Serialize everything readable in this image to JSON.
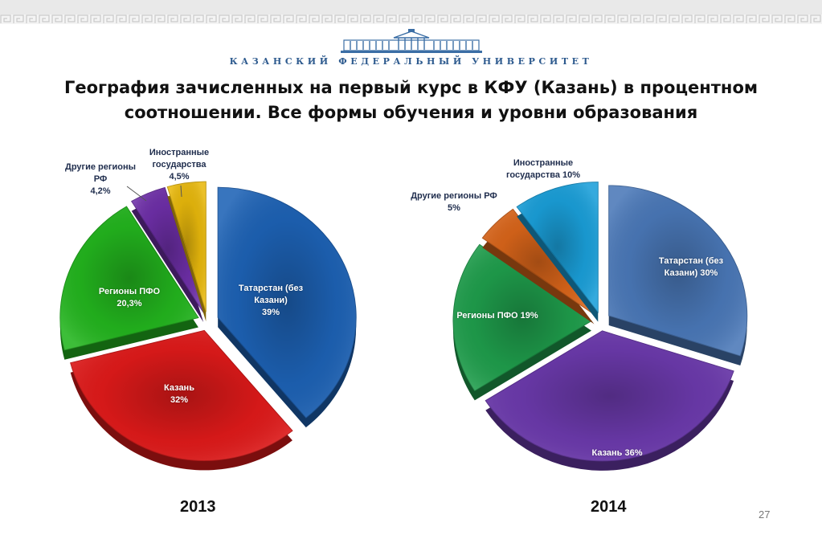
{
  "header": {
    "university_name": "КАЗАНСКИЙ ФЕДЕРАЛЬНЫЙ УНИВЕРСИТЕТ"
  },
  "slide": {
    "title": "География зачисленных на первый курс в КФУ (Казань) в процентном соотношении. Все формы обучения и уровни образования",
    "page_number": "27"
  },
  "chart_data": [
    {
      "type": "pie",
      "year_label": "2013",
      "slices": [
        {
          "label": "Татарстан (без Казани)\n39%",
          "value": 39,
          "color": "#1d62b5"
        },
        {
          "label": "Казань\n32%",
          "value": 32,
          "color": "#e01a1a"
        },
        {
          "label": "Регионы ПФО\n20,3%",
          "value": 20.3,
          "color": "#23b51e"
        },
        {
          "label": "Другие регионы РФ\n4,2%",
          "value": 4.2,
          "color": "#6e2fa8"
        },
        {
          "label": "Иностранные государства\n4,5%",
          "value": 4.5,
          "color": "#e8b80c"
        }
      ]
    },
    {
      "type": "pie",
      "year_label": "2014",
      "slices": [
        {
          "label": "Татарстан (без Казани) 30%",
          "value": 30,
          "color": "#4a78b8"
        },
        {
          "label": "Казань 36%",
          "value": 36,
          "color": "#6c3aad"
        },
        {
          "label": "Регионы ПФО 19%",
          "value": 19,
          "color": "#1f9e4c"
        },
        {
          "label": "Другие регионы РФ\n5%",
          "value": 5,
          "color": "#d9651a"
        },
        {
          "label": "Иностранные государства 10%",
          "value": 10,
          "color": "#1a9fd9"
        }
      ]
    }
  ]
}
